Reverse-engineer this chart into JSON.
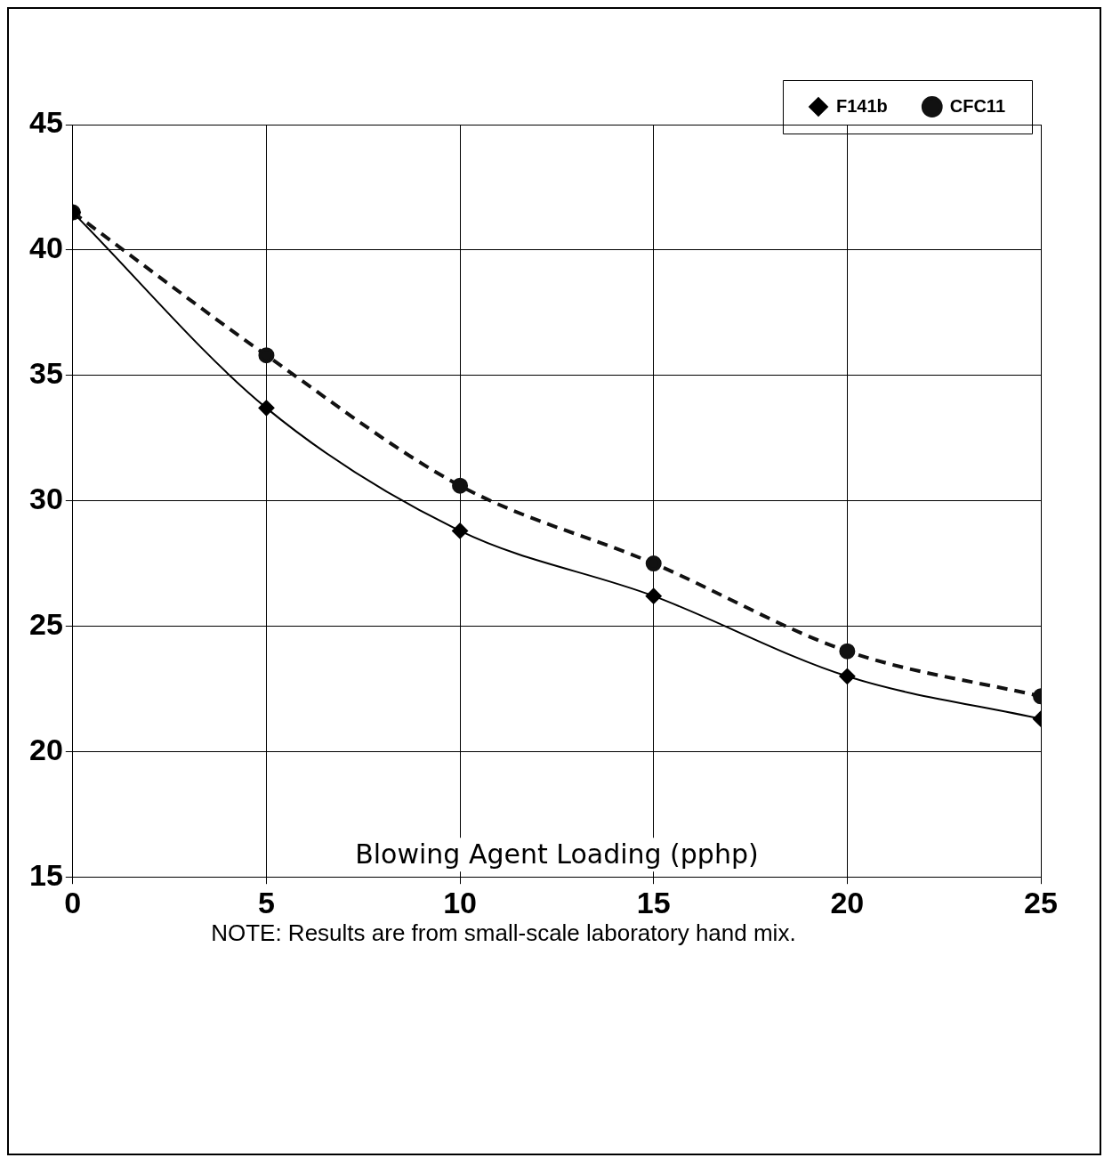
{
  "chart_data": {
    "type": "line",
    "xlabel": "Blowing Agent Loading (pphp)",
    "x": [
      0,
      5,
      10,
      15,
      20,
      25
    ],
    "series": [
      {
        "name": "F141b",
        "color": "#000000",
        "values": [
          41.5,
          33.7,
          28.8,
          26.2,
          23.0,
          21.3
        ],
        "marker": "diamond",
        "line_style": "solid"
      },
      {
        "name": "CFC11",
        "color": "#111111",
        "values": [
          41.5,
          35.8,
          30.6,
          27.5,
          24.0,
          22.2
        ],
        "marker": "circle",
        "line_style": "dashed"
      }
    ],
    "xlim": [
      0,
      25
    ],
    "xticks": [
      0,
      5,
      10,
      15,
      20,
      25
    ],
    "ylim": [
      15,
      45
    ],
    "yticks": [
      15,
      20,
      25,
      30,
      35,
      40,
      45
    ],
    "grid": true,
    "legend": "top right",
    "annotations": [
      "NOTE: Results are from small-scale laboratory hand mix."
    ]
  }
}
